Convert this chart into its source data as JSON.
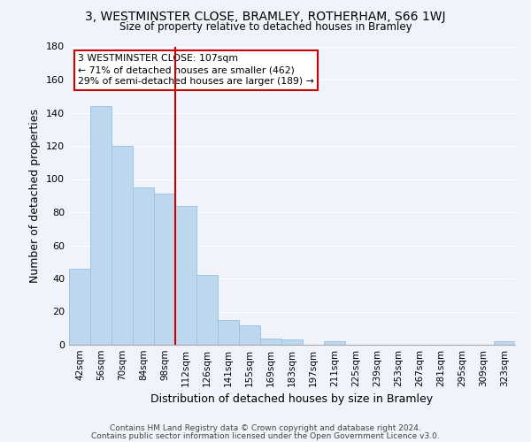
{
  "title_line1": "3, WESTMINSTER CLOSE, BRAMLEY, ROTHERHAM, S66 1WJ",
  "title_line2": "Size of property relative to detached houses in Bramley",
  "xlabel": "Distribution of detached houses by size in Bramley",
  "ylabel": "Number of detached properties",
  "bar_labels": [
    "42sqm",
    "56sqm",
    "70sqm",
    "84sqm",
    "98sqm",
    "112sqm",
    "126sqm",
    "141sqm",
    "155sqm",
    "169sqm",
    "183sqm",
    "197sqm",
    "211sqm",
    "225sqm",
    "239sqm",
    "253sqm",
    "267sqm",
    "281sqm",
    "295sqm",
    "309sqm",
    "323sqm"
  ],
  "bar_values": [
    46,
    144,
    120,
    95,
    91,
    84,
    42,
    15,
    12,
    4,
    3,
    0,
    2,
    0,
    0,
    0,
    0,
    0,
    0,
    0,
    2
  ],
  "bar_color": "#BDD7EE",
  "bar_edge_color": "#9DC3E6",
  "red_line_index": 4.5,
  "annotation_title": "3 WESTMINSTER CLOSE: 107sqm",
  "annotation_line1": "← 71% of detached houses are smaller (462)",
  "annotation_line2": "29% of semi-detached houses are larger (189) →",
  "ylim": [
    0,
    180
  ],
  "yticks": [
    0,
    20,
    40,
    60,
    80,
    100,
    120,
    140,
    160,
    180
  ],
  "footer_line1": "Contains HM Land Registry data © Crown copyright and database right 2024.",
  "footer_line2": "Contains public sector information licensed under the Open Government Licence v3.0.",
  "bg_color": "#F0F4FA",
  "grid_color": "#FFFFFF",
  "annotation_box_edge": "#CC0000",
  "red_line_color": "#CC0000"
}
